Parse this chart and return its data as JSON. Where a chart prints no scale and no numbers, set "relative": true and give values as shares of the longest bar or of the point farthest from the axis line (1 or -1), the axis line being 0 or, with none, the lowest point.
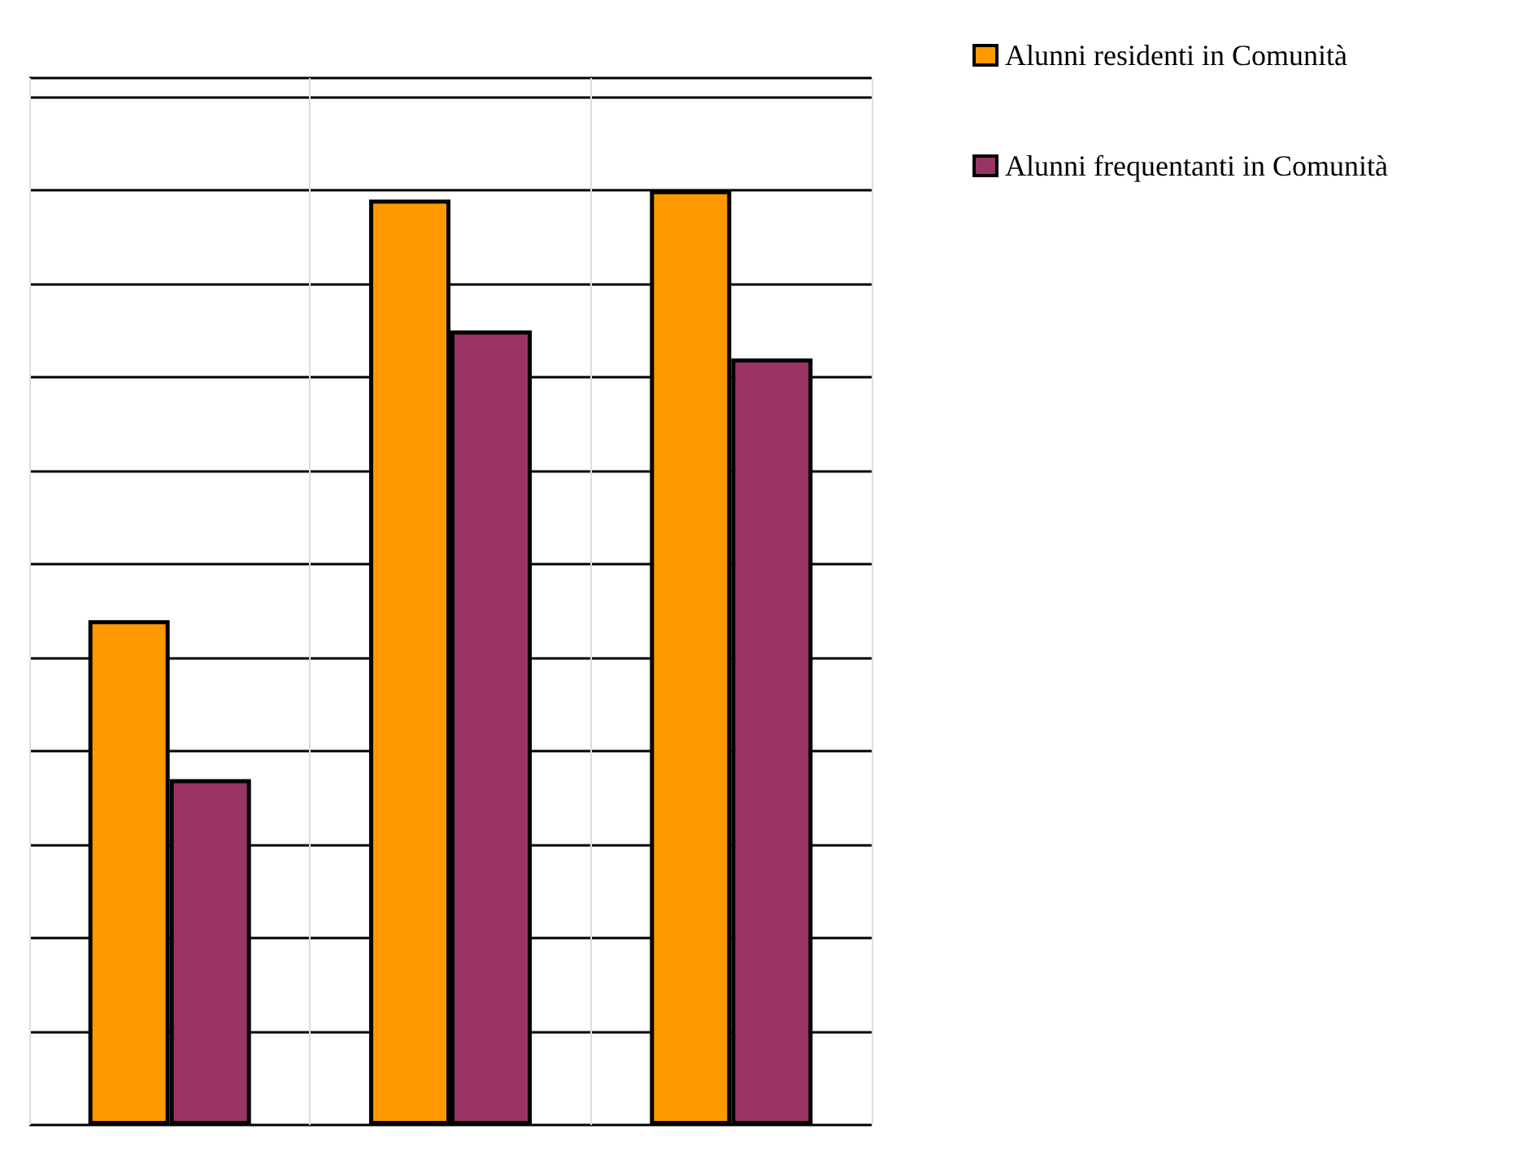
{
  "chart_data": {
    "type": "bar",
    "relative": true,
    "categories": [
      null,
      null,
      null
    ],
    "series": [
      {
        "name": "Alunni residenti in Comunità",
        "color": "#ff9900",
        "values": [
          0.54,
          0.99,
          1
        ]
      },
      {
        "name": "Alunni frequentanti in Comunità",
        "color": "#993366",
        "values": [
          0.37,
          0.85,
          0.82
        ]
      }
    ],
    "grid": true,
    "legend": "top right"
  }
}
